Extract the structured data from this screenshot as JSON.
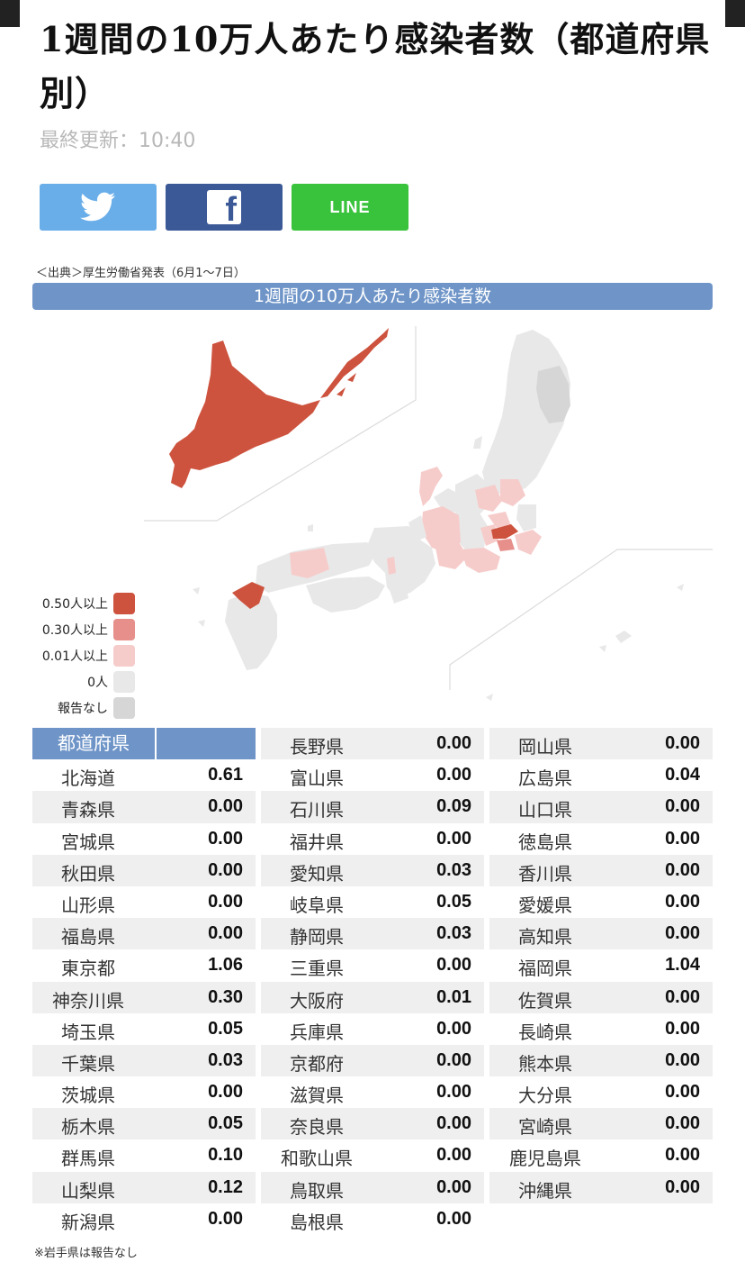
{
  "page_title": "1週間の10万人あたり感染者数（都道府県別）",
  "updated": "最終更新：10:40",
  "share": {
    "twitter": "twitter",
    "facebook": "f",
    "line": "LINE"
  },
  "source": "＜出典＞厚生労働省発表（6月1～7日）",
  "map_title": "1週間の10万人あたり感染者数",
  "colors": {
    "bin_050": "#cd533e",
    "bin_030": "#e68f8b",
    "bin_001": "#f6cccb",
    "bin_0": "#e8e8e8",
    "no_report": "#d6d6d6",
    "accent": "#6f95c8"
  },
  "legend": [
    {
      "label": "0.50人以上",
      "color": "#cd533e"
    },
    {
      "label": "0.30人以上",
      "color": "#e68f8b"
    },
    {
      "label": "0.01人以上",
      "color": "#f6cccb"
    },
    {
      "label": "0人",
      "color": "#e8e8e8"
    },
    {
      "label": "報告なし",
      "color": "#d6d6d6"
    }
  ],
  "table_header": {
    "col1": "都道府県",
    "col2": ""
  },
  "table_columns": [
    [
      {
        "name": "北海道",
        "value": "0.61"
      },
      {
        "name": "青森県",
        "value": "0.00"
      },
      {
        "name": "宮城県",
        "value": "0.00"
      },
      {
        "name": "秋田県",
        "value": "0.00"
      },
      {
        "name": "山形県",
        "value": "0.00"
      },
      {
        "name": "福島県",
        "value": "0.00"
      },
      {
        "name": "東京都",
        "value": "1.06"
      },
      {
        "name": "神奈川県",
        "value": "0.30"
      },
      {
        "name": "埼玉県",
        "value": "0.05"
      },
      {
        "name": "千葉県",
        "value": "0.03"
      },
      {
        "name": "茨城県",
        "value": "0.00"
      },
      {
        "name": "栃木県",
        "value": "0.05"
      },
      {
        "name": "群馬県",
        "value": "0.10"
      },
      {
        "name": "山梨県",
        "value": "0.12"
      },
      {
        "name": "新潟県",
        "value": "0.00"
      }
    ],
    [
      {
        "name": "長野県",
        "value": "0.00"
      },
      {
        "name": "富山県",
        "value": "0.00"
      },
      {
        "name": "石川県",
        "value": "0.09"
      },
      {
        "name": "福井県",
        "value": "0.00"
      },
      {
        "name": "愛知県",
        "value": "0.03"
      },
      {
        "name": "岐阜県",
        "value": "0.05"
      },
      {
        "name": "静岡県",
        "value": "0.03"
      },
      {
        "name": "三重県",
        "value": "0.00"
      },
      {
        "name": "大阪府",
        "value": "0.01"
      },
      {
        "name": "兵庫県",
        "value": "0.00"
      },
      {
        "name": "京都府",
        "value": "0.00"
      },
      {
        "name": "滋賀県",
        "value": "0.00"
      },
      {
        "name": "奈良県",
        "value": "0.00"
      },
      {
        "name": "和歌山県",
        "value": "0.00"
      },
      {
        "name": "鳥取県",
        "value": "0.00"
      },
      {
        "name": "島根県",
        "value": "0.00"
      }
    ],
    [
      {
        "name": "岡山県",
        "value": "0.00"
      },
      {
        "name": "広島県",
        "value": "0.04"
      },
      {
        "name": "山口県",
        "value": "0.00"
      },
      {
        "name": "徳島県",
        "value": "0.00"
      },
      {
        "name": "香川県",
        "value": "0.00"
      },
      {
        "name": "愛媛県",
        "value": "0.00"
      },
      {
        "name": "高知県",
        "value": "0.00"
      },
      {
        "name": "福岡県",
        "value": "1.04"
      },
      {
        "name": "佐賀県",
        "value": "0.00"
      },
      {
        "name": "長崎県",
        "value": "0.00"
      },
      {
        "name": "熊本県",
        "value": "0.00"
      },
      {
        "name": "大分県",
        "value": "0.00"
      },
      {
        "name": "宮崎県",
        "value": "0.00"
      },
      {
        "name": "鹿児島県",
        "value": "0.00"
      },
      {
        "name": "沖縄県",
        "value": "0.00"
      }
    ]
  ],
  "note": "※岩手県は報告なし",
  "chart_data": {
    "type": "table",
    "title": "1週間の10万人あたり感染者数",
    "bins": [
      "0.50人以上",
      "0.30人以上",
      "0.01人以上",
      "0人",
      "報告なし"
    ],
    "categories": [
      "北海道",
      "青森県",
      "岩手県",
      "宮城県",
      "秋田県",
      "山形県",
      "福島県",
      "東京都",
      "神奈川県",
      "埼玉県",
      "千葉県",
      "茨城県",
      "栃木県",
      "群馬県",
      "山梨県",
      "新潟県",
      "長野県",
      "富山県",
      "石川県",
      "福井県",
      "愛知県",
      "岐阜県",
      "静岡県",
      "三重県",
      "大阪府",
      "兵庫県",
      "京都府",
      "滋賀県",
      "奈良県",
      "和歌山県",
      "鳥取県",
      "島根県",
      "岡山県",
      "広島県",
      "山口県",
      "徳島県",
      "香川県",
      "愛媛県",
      "高知県",
      "福岡県",
      "佐賀県",
      "長崎県",
      "熊本県",
      "大分県",
      "宮崎県",
      "鹿児島県",
      "沖縄県"
    ],
    "values": [
      0.61,
      0.0,
      null,
      0.0,
      0.0,
      0.0,
      0.0,
      1.06,
      0.3,
      0.05,
      0.03,
      0.0,
      0.05,
      0.1,
      0.12,
      0.0,
      0.0,
      0.0,
      0.09,
      0.0,
      0.03,
      0.05,
      0.03,
      0.0,
      0.01,
      0.0,
      0.0,
      0.0,
      0.0,
      0.0,
      0.0,
      0.0,
      0.0,
      0.04,
      0.0,
      0.0,
      0.0,
      0.0,
      0.0,
      1.04,
      0.0,
      0.0,
      0.0,
      0.0,
      0.0,
      0.0,
      0.0
    ]
  }
}
